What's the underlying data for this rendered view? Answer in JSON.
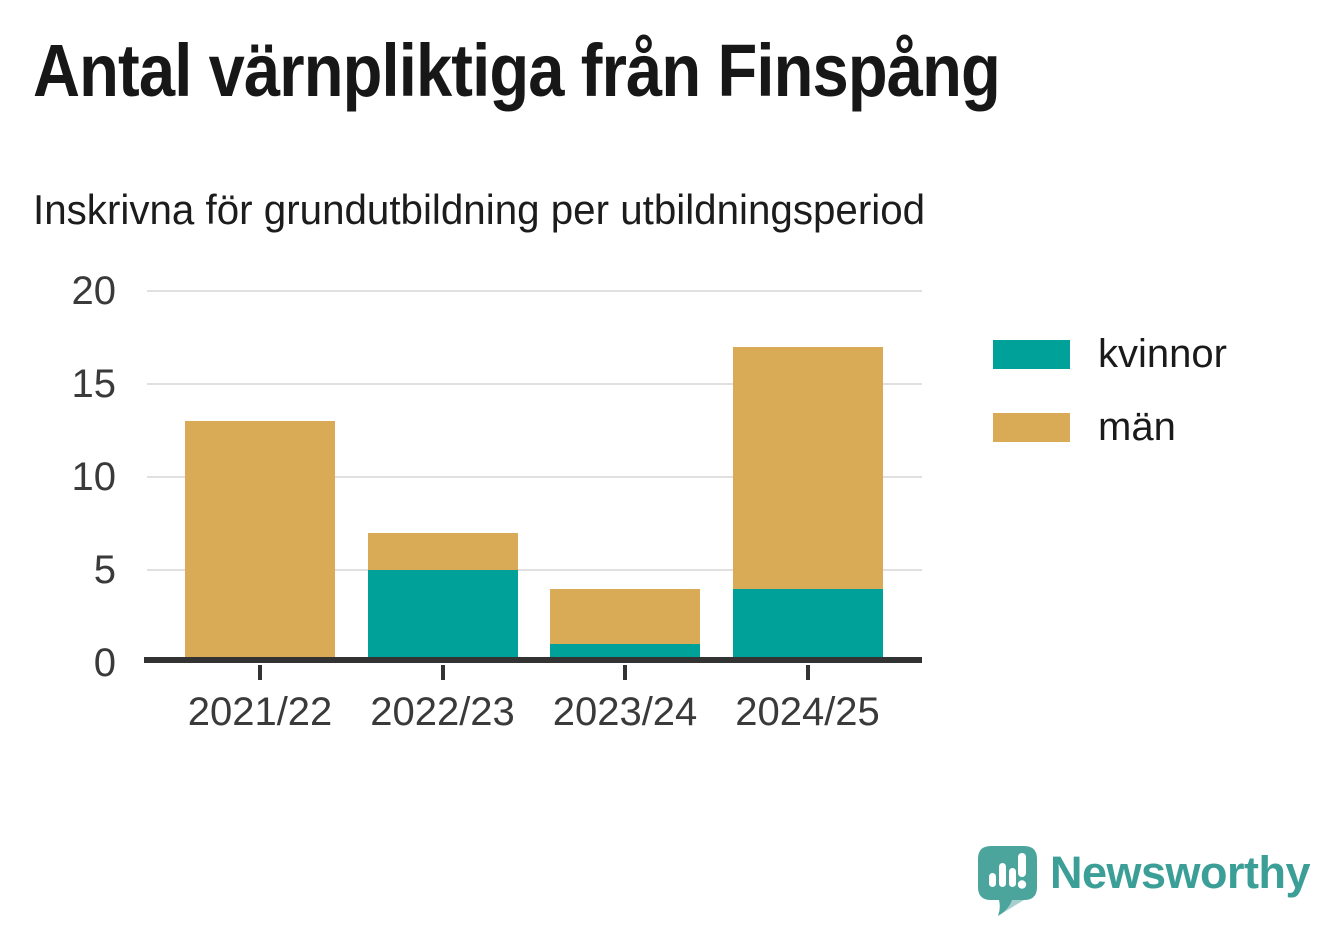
{
  "header": {
    "title": "Antal värnpliktiga från Finspång",
    "subtitle": "Inskrivna för grundutbildning per utbildningsperiod"
  },
  "chart_data": {
    "type": "bar",
    "stacked": true,
    "title": "Antal värnpliktiga från Finspång",
    "subtitle": "Inskrivna för grundutbildning per utbildningsperiod",
    "categories": [
      "2021/22",
      "2022/23",
      "2023/24",
      "2024/25"
    ],
    "series": [
      {
        "name": "kvinnor",
        "color": "#00a199",
        "values": [
          0,
          5,
          1,
          4
        ]
      },
      {
        "name": "män",
        "color": "#d9ab57",
        "values": [
          13,
          2,
          3,
          13
        ]
      }
    ],
    "totals": [
      13,
      7,
      4,
      17
    ],
    "xlabel": "",
    "ylabel": "",
    "ylim": [
      0,
      20
    ],
    "yticks": [
      0,
      5,
      10,
      15,
      20
    ],
    "grid": "horizontal gridlines at y ticks, dark baseline at 0",
    "legend_position": "right"
  },
  "colors": {
    "kvinnor": "#00a199",
    "man": "#d9ab57",
    "axis_text": "#3a3a3a",
    "baseline": "#333333",
    "gridline": "#e0e0e0",
    "brand_teal": "#3b9e97",
    "logo_bubble": "#4ba59d"
  },
  "branding": {
    "logo_text": "Newsworthy",
    "logo_icon": "speech-bubble-bar-chart-icon"
  }
}
